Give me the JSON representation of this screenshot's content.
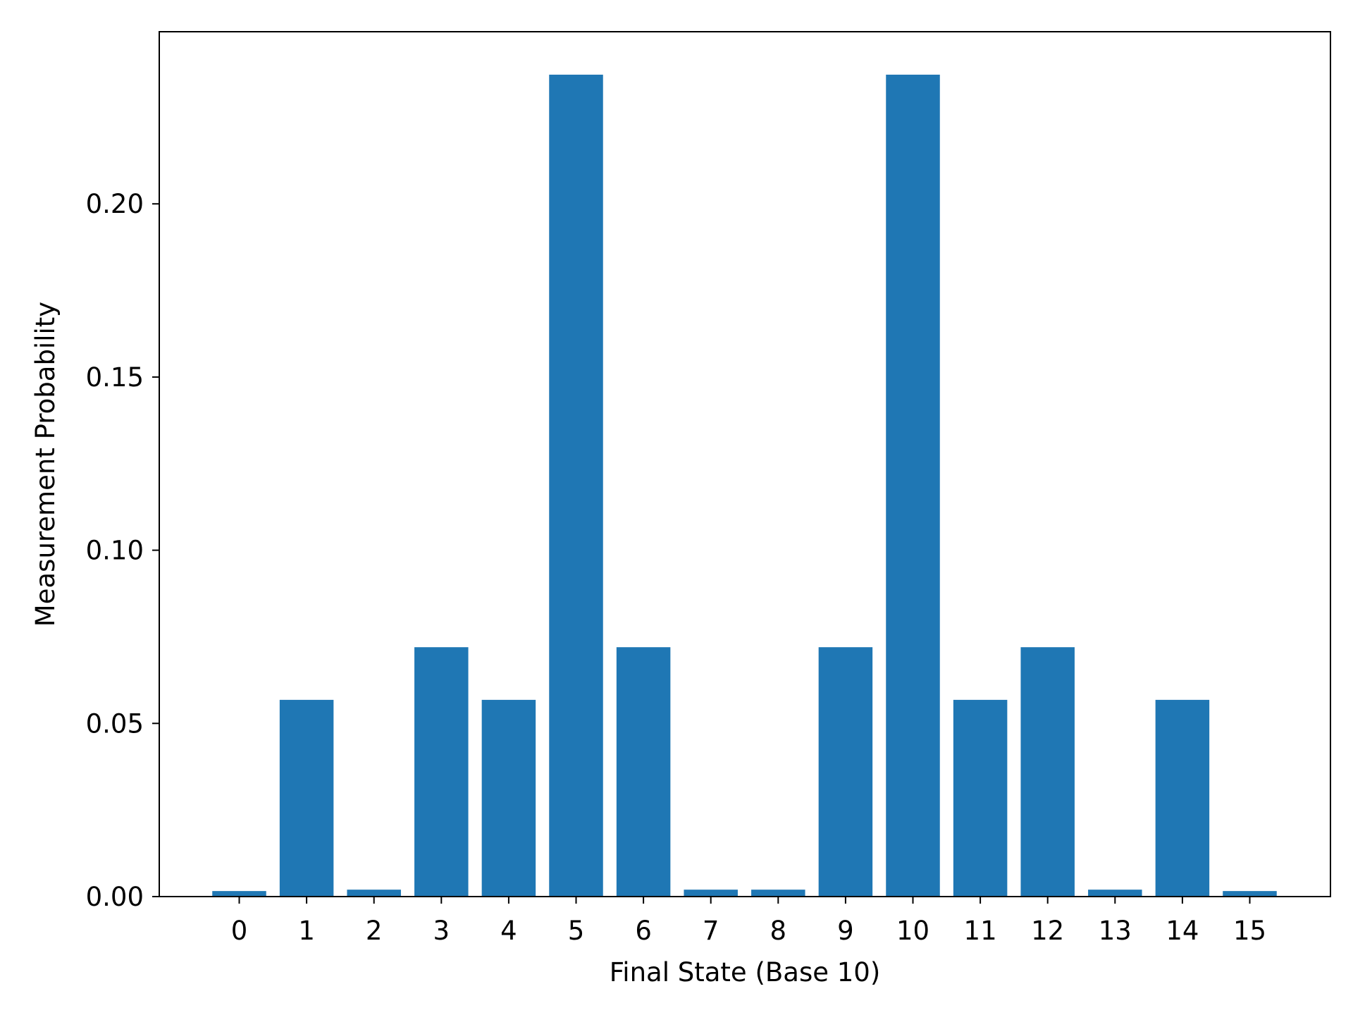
{
  "chart_data": {
    "type": "bar",
    "title": "",
    "xlabel": "Final State (Base 10)",
    "ylabel": "Measurement Probability",
    "categories": [
      "0",
      "1",
      "2",
      "3",
      "4",
      "5",
      "6",
      "7",
      "8",
      "9",
      "10",
      "11",
      "12",
      "13",
      "14",
      "15"
    ],
    "values": [
      0.0016,
      0.0568,
      0.002,
      0.072,
      0.0568,
      0.2373,
      0.072,
      0.002,
      0.002,
      0.072,
      0.2373,
      0.0568,
      0.072,
      0.002,
      0.0568,
      0.0016
    ],
    "ylim": [
      0,
      0.2497
    ],
    "yticks": [
      0.0,
      0.05,
      0.1,
      0.15,
      0.2
    ],
    "ytick_labels": [
      "0.00",
      "0.05",
      "0.10",
      "0.15",
      "0.20"
    ],
    "bar_color": "#1f77b4",
    "grid": false,
    "legend": "none"
  }
}
